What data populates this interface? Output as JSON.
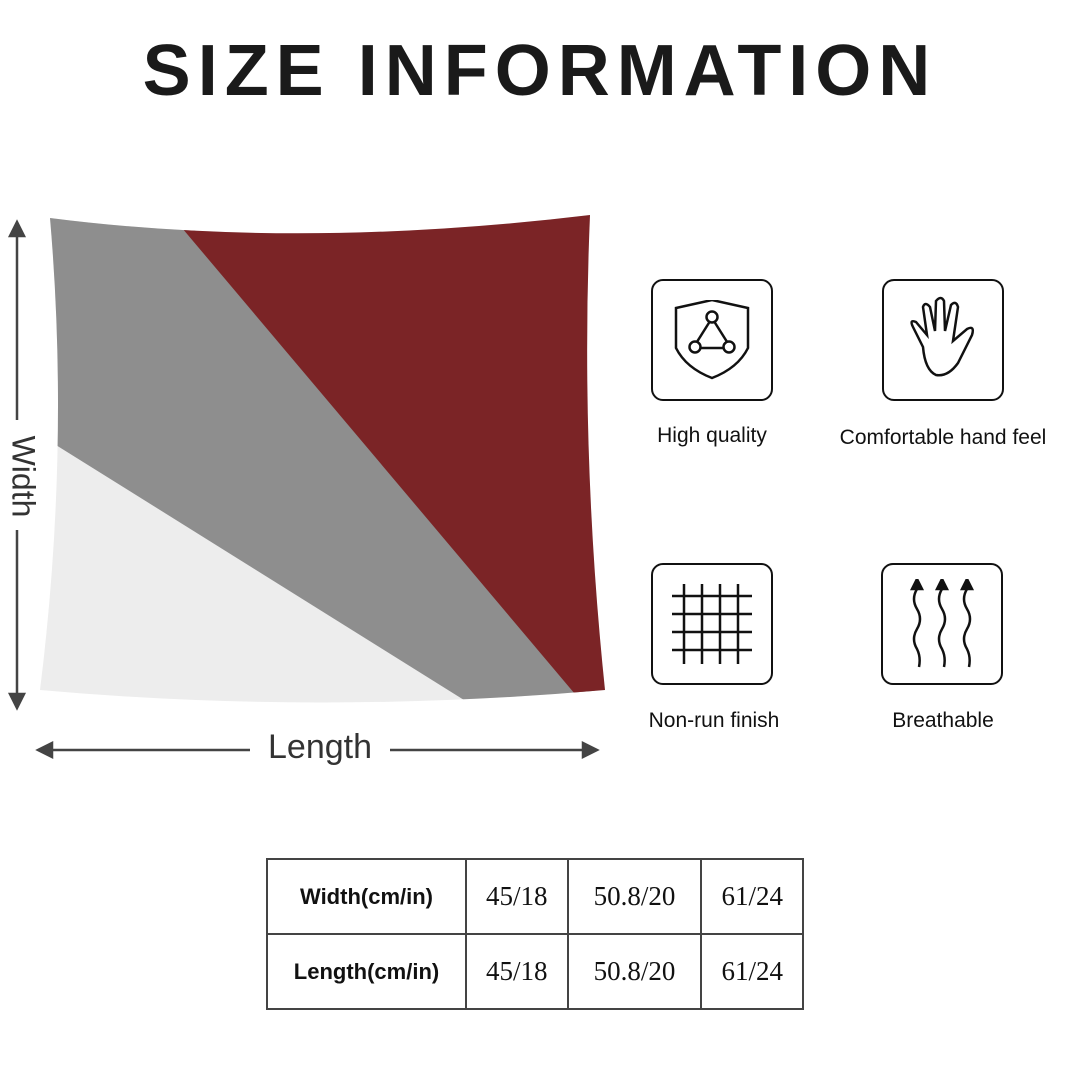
{
  "title": "SIZE INFORMATION",
  "dimensions": {
    "width_label": "Width",
    "length_label": "Length"
  },
  "colors": {
    "red": "#7b2426",
    "gray": "#8e8e8e",
    "white": "#ededed"
  },
  "features": [
    {
      "label": "High quality",
      "icon": "shield-icon"
    },
    {
      "label": "Comfortable hand feel",
      "icon": "hand-icon"
    },
    {
      "label": "Non-run finish",
      "icon": "grid-icon"
    },
    {
      "label": "Breathable",
      "icon": "airflow-arrows-icon"
    }
  ],
  "size_table": {
    "rows": [
      {
        "header": "Width(cm/in)",
        "values": [
          "45/18",
          "50.8/20",
          "61/24"
        ]
      },
      {
        "header": "Length(cm/in)",
        "values": [
          "45/18",
          "50.8/20",
          "61/24"
        ]
      }
    ]
  }
}
